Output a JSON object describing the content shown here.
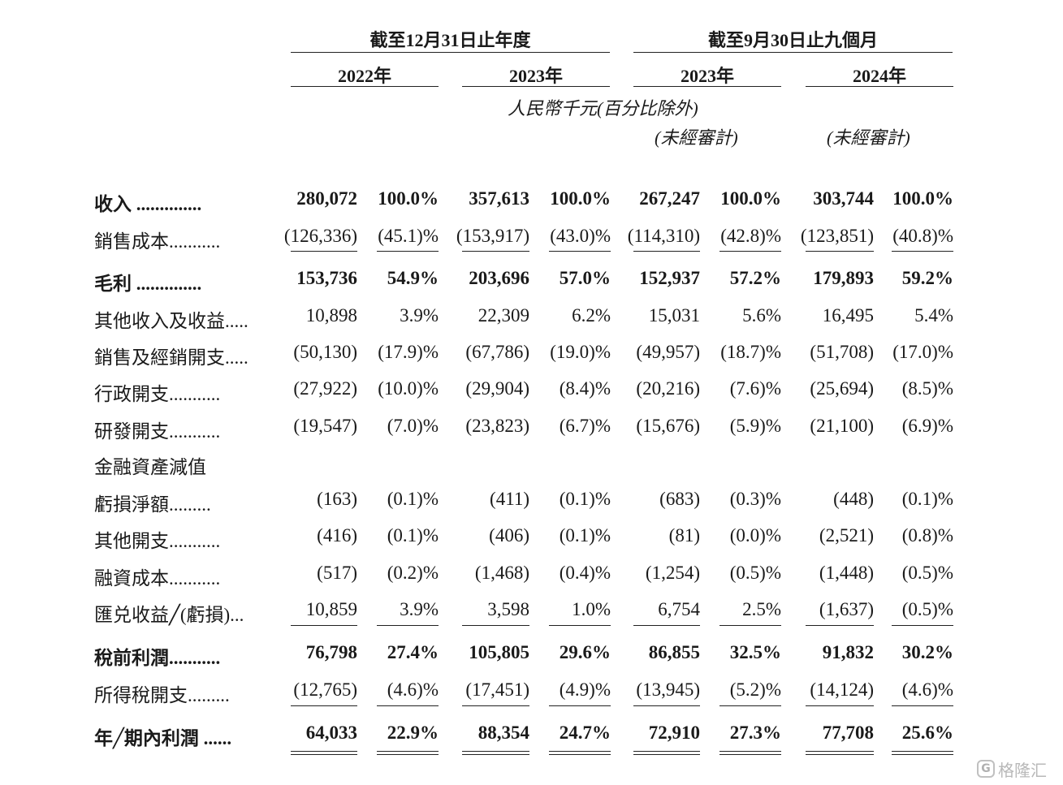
{
  "header": {
    "period_year": "截至12月31日止年度",
    "period_nine": "截至9月30日止九個月",
    "years": [
      "2022年",
      "2023年",
      "2023年",
      "2024年"
    ],
    "currency_note": "人民幣千元(百分比除外)",
    "unaudited_1": "(未經審計)",
    "unaudited_2": "(未經審計)"
  },
  "rows": [
    {
      "label": "收入 ..............",
      "bold": true,
      "values": [
        "280,072",
        "100.0%",
        "357,613",
        "100.0%",
        "267,247",
        "100.0%",
        "303,744",
        "100.0%"
      ]
    },
    {
      "label": "銷售成本...........",
      "bold": false,
      "values": [
        "(126,336)",
        "(45.1)%",
        "(153,917)",
        "(43.0)%",
        "(114,310)",
        "(42.8)%",
        "(123,851)",
        "(40.8)%"
      ]
    },
    {
      "label": "毛利 ..............",
      "bold": true,
      "values": [
        "153,736",
        "54.9%",
        "203,696",
        "57.0%",
        "152,937",
        "57.2%",
        "179,893",
        "59.2%"
      ]
    },
    {
      "label": "其他收入及收益.....",
      "bold": false,
      "values": [
        "10,898",
        "3.9%",
        "22,309",
        "6.2%",
        "15,031",
        "5.6%",
        "16,495",
        "5.4%"
      ]
    },
    {
      "label": "銷售及經銷開支.....",
      "bold": false,
      "values": [
        "(50,130)",
        "(17.9)%",
        "(67,786)",
        "(19.0)%",
        "(49,957)",
        "(18.7)%",
        "(51,708)",
        "(17.0)%"
      ]
    },
    {
      "label": "行政開支...........",
      "bold": false,
      "values": [
        "(27,922)",
        "(10.0)%",
        "(29,904)",
        "(8.4)%",
        "(20,216)",
        "(7.6)%",
        "(25,694)",
        "(8.5)%"
      ]
    },
    {
      "label": "研發開支...........",
      "bold": false,
      "values": [
        "(19,547)",
        "(7.0)%",
        "(23,823)",
        "(6.7)%",
        "(15,676)",
        "(5.9)%",
        "(21,100)",
        "(6.9)%"
      ]
    },
    {
      "label": "金融資產減值",
      "bold": false,
      "values": [
        "",
        "",
        "",
        "",
        "",
        "",
        "",
        ""
      ]
    },
    {
      "label": "  虧損淨額.........",
      "bold": false,
      "values": [
        "(163)",
        "(0.1)%",
        "(411)",
        "(0.1)%",
        "(683)",
        "(0.3)%",
        "(448)",
        "(0.1)%"
      ]
    },
    {
      "label": "其他開支...........",
      "bold": false,
      "values": [
        "(416)",
        "(0.1)%",
        "(406)",
        "(0.1)%",
        "(81)",
        "(0.0)%",
        "(2,521)",
        "(0.8)%"
      ]
    },
    {
      "label": "融資成本...........",
      "bold": false,
      "values": [
        "(517)",
        "(0.2)%",
        "(1,468)",
        "(0.4)%",
        "(1,254)",
        "(0.5)%",
        "(1,448)",
        "(0.5)%"
      ]
    },
    {
      "label": "匯兑收益╱(虧損)...",
      "bold": false,
      "values": [
        "10,859",
        "3.9%",
        "3,598",
        "1.0%",
        "6,754",
        "2.5%",
        "(1,637)",
        "(0.5)%"
      ]
    },
    {
      "label": "稅前利潤...........",
      "bold": true,
      "values": [
        "76,798",
        "27.4%",
        "105,805",
        "29.6%",
        "86,855",
        "32.5%",
        "91,832",
        "30.2%"
      ]
    },
    {
      "label": "所得稅開支.........",
      "bold": false,
      "values": [
        "(12,765)",
        "(4.6)%",
        "(17,451)",
        "(4.9)%",
        "(13,945)",
        "(5.2)%",
        "(14,124)",
        "(4.6)%"
      ]
    },
    {
      "label": "年╱期內利潤 ......",
      "bold": true,
      "values": [
        "64,033",
        "22.9%",
        "88,354",
        "24.7%",
        "72,910",
        "27.3%",
        "77,708",
        "25.6%"
      ]
    }
  ],
  "watermark": {
    "text": "格隆汇",
    "logo": "G"
  }
}
